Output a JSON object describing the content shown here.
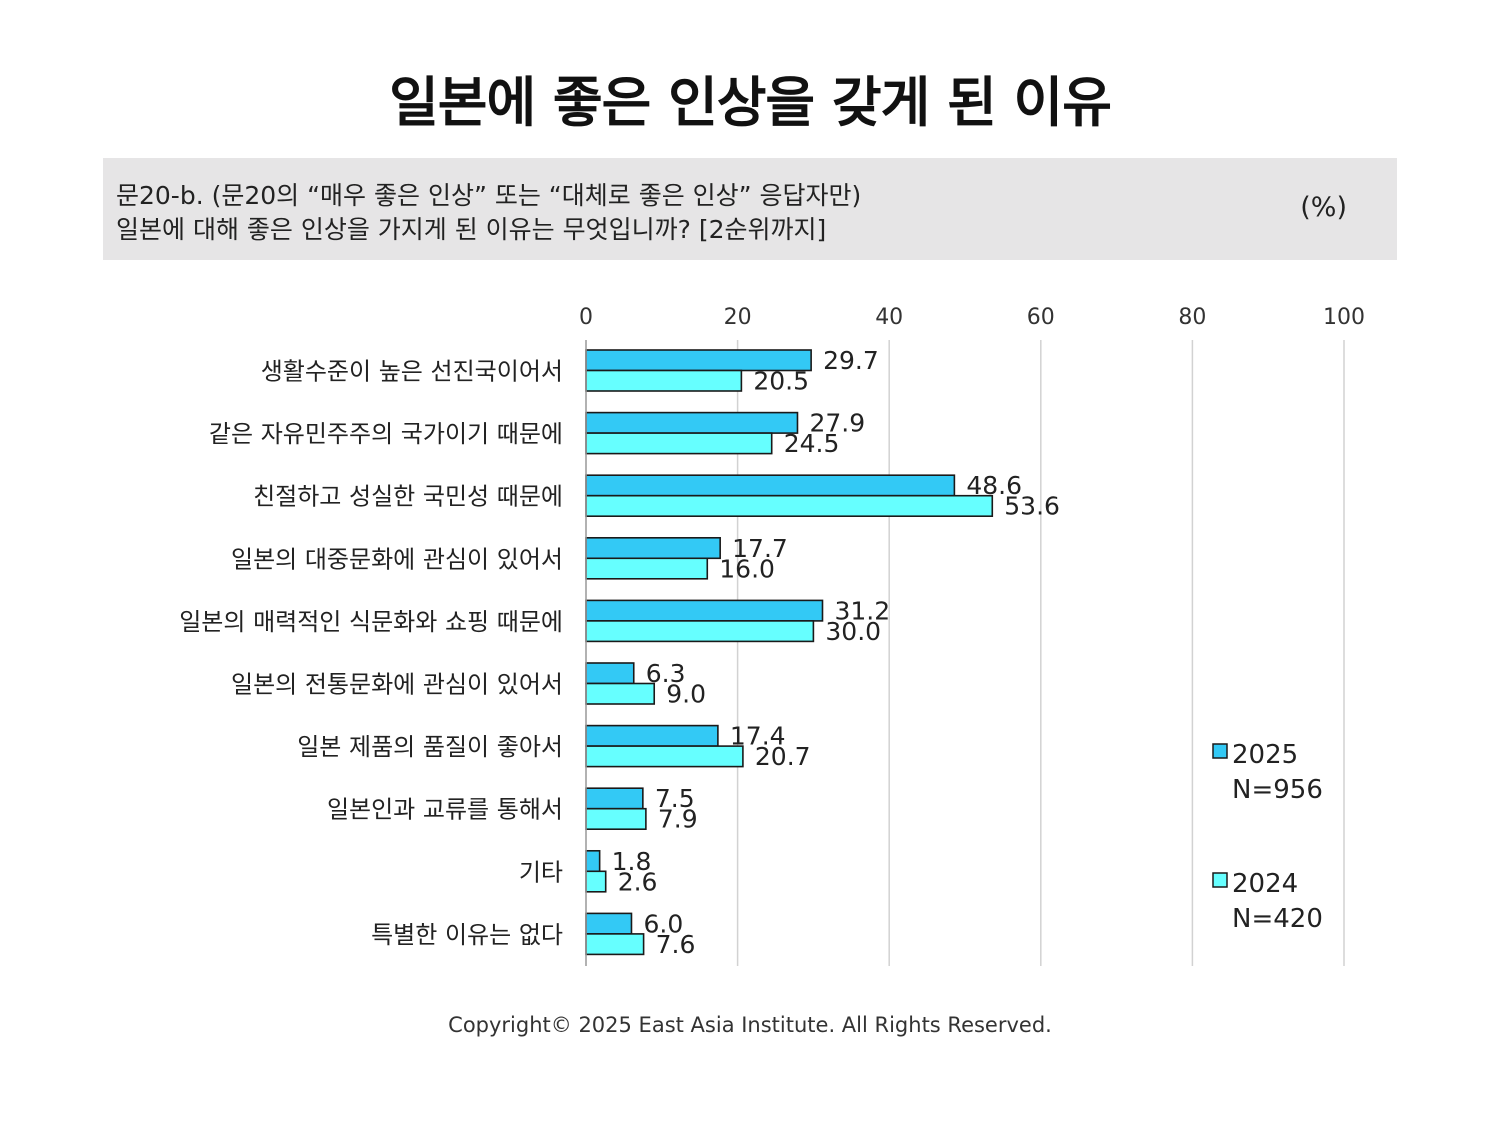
{
  "title": "일본에 좋은 인상을 갖게 된 이유",
  "question": {
    "line1": "문20-b. (문20의 “매우 좋은 인상” 또는 “대체로 좋은 인상” 응답자만)",
    "line2": "일본에 대해 좋은 인상을 가지게 된 이유는 무엇입니까? [2순위까지]",
    "unit": "(%)"
  },
  "copyright": "Copyright© 2025 East Asia Institute. All Rights Reserved.",
  "colors": {
    "series_2025": "#33c9f5",
    "series_2024": "#66ffff",
    "bar_border": "#1a1a1a",
    "gridline": "#d2d2d2"
  },
  "chart_data": {
    "type": "bar",
    "orientation": "horizontal",
    "categories": [
      "생활수준이 높은 선진국이어서",
      "같은 자유민주주의 국가이기 때문에",
      "친절하고 성실한 국민성 때문에",
      "일본의 대중문화에 관심이 있어서",
      "일본의 매력적인 식문화와 쇼핑 때문에",
      "일본의 전통문화에 관심이 있어서",
      "일본 제품의 품질이 좋아서",
      "일본인과 교류를 통해서",
      "기타",
      "특별한 이유는 없다"
    ],
    "series": [
      {
        "name": "2025",
        "sample": "N=956",
        "values": [
          29.7,
          27.9,
          48.6,
          17.7,
          31.2,
          6.3,
          17.4,
          7.5,
          1.8,
          6.0
        ],
        "labels": [
          "29.7",
          "27.9",
          "48.6",
          "17.7",
          "31.2",
          "6.3",
          "17.4",
          "7.5",
          "1.8",
          "6.0"
        ]
      },
      {
        "name": "2024",
        "sample": "N=420",
        "values": [
          20.5,
          24.5,
          53.6,
          16.0,
          30.0,
          9.0,
          20.7,
          7.9,
          2.6,
          7.6
        ],
        "labels": [
          "20.5",
          "24.5",
          "53.6",
          "16.0",
          "30.0",
          "9.0",
          "20.7",
          "7.9",
          "2.6",
          "7.6"
        ]
      }
    ],
    "xlim": [
      0,
      100
    ],
    "xticks": [
      "0",
      "20",
      "40",
      "60",
      "80",
      "100"
    ],
    "xtick_values": [
      0,
      20,
      40,
      60,
      80,
      100
    ],
    "xaxis_position": "top",
    "grid": true,
    "legend": "right"
  }
}
